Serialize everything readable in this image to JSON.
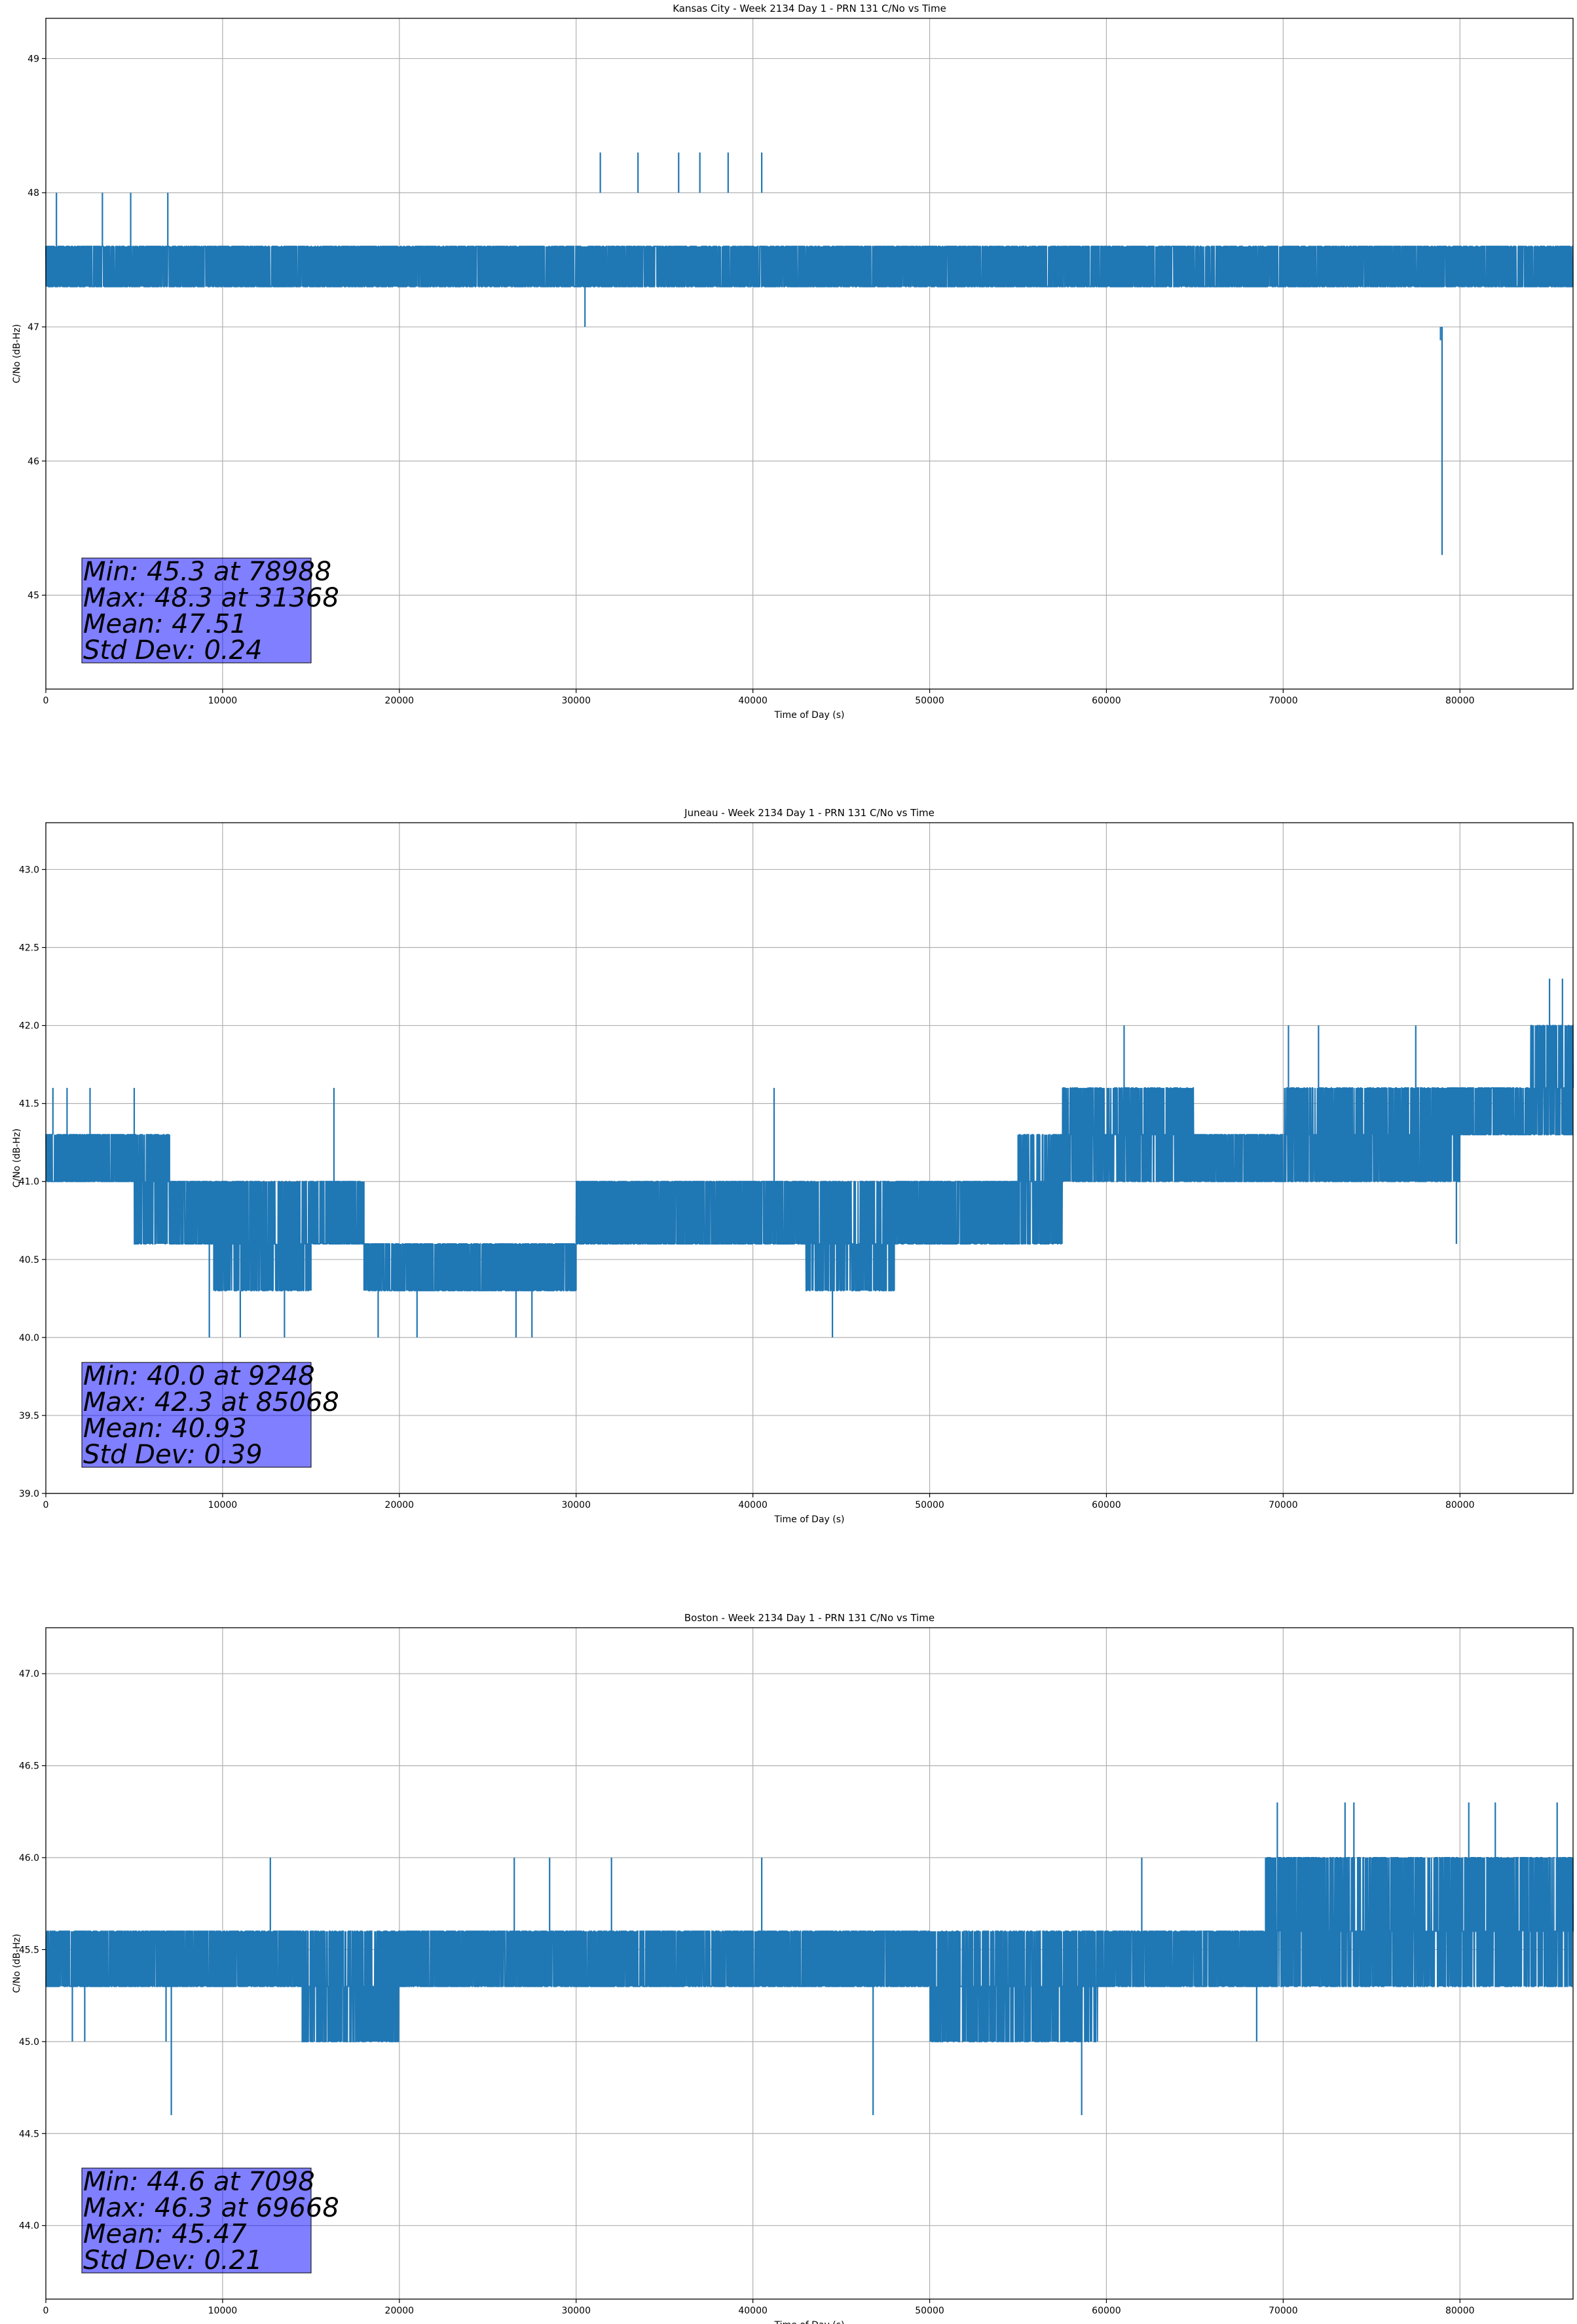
{
  "chart_data": [
    {
      "type": "line",
      "title": "Kansas City - Week 2134 Day 1 - PRN 131 C/No vs Time",
      "xlabel": "Time of Day (s)",
      "ylabel": "C/No (dB-Hz)",
      "xlim": [
        0,
        86400
      ],
      "ylim": [
        44.3,
        49.3
      ],
      "xticks": [
        0,
        10000,
        20000,
        30000,
        40000,
        50000,
        60000,
        70000,
        80000
      ],
      "yticks": [
        45,
        46,
        47,
        48,
        49
      ],
      "ytick_labels": [
        "45",
        "46",
        "47",
        "48",
        "49"
      ],
      "grid": true,
      "color": "#1f77b4",
      "band_levels": [
        47.3,
        47.6
      ],
      "segments": [
        {
          "x": [
            0,
            3000
          ],
          "low": 47.3,
          "high": 47.6
        },
        {
          "x": [
            3000,
            7000
          ],
          "low": 47.3,
          "high": 47.6
        },
        {
          "x": [
            7000,
            10000
          ],
          "low": 47.3,
          "high": 47.6
        },
        {
          "x": [
            10000,
            22500
          ],
          "low": 47.0,
          "high": 47.6
        },
        {
          "x": [
            22500,
            27000
          ],
          "low": 47.3,
          "high": 47.6
        },
        {
          "x": [
            27000,
            44000
          ],
          "low": 47.3,
          "high": 48.0
        },
        {
          "x": [
            44000,
            50500
          ],
          "low": 47.3,
          "high": 47.6
        },
        {
          "x": [
            50500,
            54000
          ],
          "low": 47.0,
          "high": 47.6
        },
        {
          "x": [
            54000,
            58000
          ],
          "low": 47.3,
          "high": 47.6
        },
        {
          "x": [
            58000,
            72000
          ],
          "low": 47.3,
          "high": 48.0
        },
        {
          "x": [
            72000,
            75000
          ],
          "low": 47.3,
          "high": 47.6
        },
        {
          "x": [
            75000,
            80000
          ],
          "low": 47.0,
          "high": 47.6
        },
        {
          "x": [
            80000,
            86400
          ],
          "low": 47.3,
          "high": 47.6
        }
      ],
      "spikes": [
        {
          "x": 600,
          "y": 48.0
        },
        {
          "x": 3200,
          "y": 48.0
        },
        {
          "x": 4800,
          "y": 48.0
        },
        {
          "x": 6900,
          "y": 48.0
        },
        {
          "x": 31368,
          "y": 48.3
        },
        {
          "x": 33500,
          "y": 48.3
        },
        {
          "x": 35800,
          "y": 48.3
        },
        {
          "x": 37000,
          "y": 48.3
        },
        {
          "x": 38600,
          "y": 48.3
        },
        {
          "x": 40500,
          "y": 48.3
        },
        {
          "x": 78988,
          "y": 45.3
        },
        {
          "x": 78900,
          "y": 46.9
        },
        {
          "x": 30500,
          "y": 47.0
        }
      ],
      "annotation": [
        "Min: 45.3 at 78988",
        "Max: 48.3 at 31368",
        "Mean: 47.51",
        "Std Dev: 0.24"
      ],
      "stats": {
        "min": 45.3,
        "min_time": 78988,
        "max": 48.3,
        "max_time": 31368,
        "mean": 47.51,
        "std_dev": 0.24
      }
    },
    {
      "type": "line",
      "title": "Juneau - Week 2134 Day 1 - PRN 131 C/No vs Time",
      "xlabel": "Time of Day (s)",
      "ylabel": "C/No (dB-Hz)",
      "xlim": [
        0,
        86400
      ],
      "ylim": [
        39.0,
        43.3
      ],
      "xticks": [
        0,
        10000,
        20000,
        30000,
        40000,
        50000,
        60000,
        70000,
        80000
      ],
      "yticks": [
        39.0,
        39.5,
        40.0,
        40.5,
        41.0,
        41.5,
        42.0,
        42.5,
        43.0
      ],
      "ytick_labels": [
        "39.0",
        "39.5",
        "40.0",
        "40.5",
        "41.0",
        "41.5",
        "42.0",
        "42.5",
        "43.0"
      ],
      "grid": true,
      "color": "#1f77b4",
      "band_levels": [
        40.0,
        40.3,
        40.6,
        41.0,
        41.3,
        41.6,
        42.0
      ],
      "segments": [
        {
          "x": [
            0,
            5000
          ],
          "low": 41.0,
          "high": 41.3
        },
        {
          "x": [
            5000,
            7000
          ],
          "low": 40.6,
          "high": 41.3
        },
        {
          "x": [
            7000,
            9500
          ],
          "low": 40.6,
          "high": 41.0
        },
        {
          "x": [
            9500,
            15000
          ],
          "low": 40.3,
          "high": 41.0
        },
        {
          "x": [
            15000,
            18000
          ],
          "low": 40.6,
          "high": 41.0
        },
        {
          "x": [
            18000,
            26000
          ],
          "low": 40.3,
          "high": 40.6
        },
        {
          "x": [
            26000,
            30000
          ],
          "low": 40.3,
          "high": 40.6
        },
        {
          "x": [
            30000,
            36000
          ],
          "low": 40.6,
          "high": 41.0
        },
        {
          "x": [
            36000,
            43000
          ],
          "low": 40.6,
          "high": 41.0
        },
        {
          "x": [
            43000,
            48000
          ],
          "low": 40.3,
          "high": 41.0
        },
        {
          "x": [
            48000,
            55000
          ],
          "low": 40.6,
          "high": 41.0
        },
        {
          "x": [
            55000,
            57500
          ],
          "low": 40.6,
          "high": 41.3
        },
        {
          "x": [
            57500,
            65000
          ],
          "low": 41.0,
          "high": 41.6
        },
        {
          "x": [
            65000,
            70000
          ],
          "low": 41.0,
          "high": 41.3
        },
        {
          "x": [
            70000,
            80000
          ],
          "low": 41.0,
          "high": 41.6
        },
        {
          "x": [
            80000,
            84000
          ],
          "low": 41.3,
          "high": 41.6
        },
        {
          "x": [
            84000,
            86400
          ],
          "low": 41.3,
          "high": 42.0
        }
      ],
      "spikes": [
        {
          "x": 400,
          "y": 41.6
        },
        {
          "x": 1200,
          "y": 41.6
        },
        {
          "x": 2500,
          "y": 41.6
        },
        {
          "x": 5000,
          "y": 41.6
        },
        {
          "x": 16300,
          "y": 41.6
        },
        {
          "x": 41200,
          "y": 41.6
        },
        {
          "x": 9248,
          "y": 40.0
        },
        {
          "x": 11000,
          "y": 40.0
        },
        {
          "x": 13500,
          "y": 40.0
        },
        {
          "x": 18800,
          "y": 40.0
        },
        {
          "x": 21000,
          "y": 40.0
        },
        {
          "x": 26600,
          "y": 40.0
        },
        {
          "x": 27500,
          "y": 40.0
        },
        {
          "x": 44500,
          "y": 40.0
        },
        {
          "x": 61000,
          "y": 42.0
        },
        {
          "x": 70300,
          "y": 42.0
        },
        {
          "x": 72000,
          "y": 42.0
        },
        {
          "x": 77500,
          "y": 42.0
        },
        {
          "x": 85068,
          "y": 42.3
        },
        {
          "x": 85800,
          "y": 42.3
        },
        {
          "x": 79800,
          "y": 40.6
        }
      ],
      "annotation": [
        "Min: 40.0 at 9248",
        "Max: 42.3 at 85068",
        "Mean: 40.93",
        "Std Dev: 0.39"
      ],
      "stats": {
        "min": 40.0,
        "min_time": 9248,
        "max": 42.3,
        "max_time": 85068,
        "mean": 40.93,
        "std_dev": 0.39
      }
    },
    {
      "type": "line",
      "title": "Boston - Week 2134 Day 1 - PRN 131 C/No vs Time",
      "xlabel": "Time of Day (s)",
      "ylabel": "C/No (dB-Hz)",
      "xlim": [
        0,
        86400
      ],
      "ylim": [
        43.6,
        47.25
      ],
      "xticks": [
        0,
        10000,
        20000,
        30000,
        40000,
        50000,
        60000,
        70000,
        80000
      ],
      "yticks": [
        44.0,
        44.5,
        45.0,
        45.5,
        46.0,
        46.5,
        47.0
      ],
      "ytick_labels": [
        "44.0",
        "44.5",
        "45.0",
        "45.5",
        "46.0",
        "46.5",
        "47.0"
      ],
      "grid": true,
      "color": "#1f77b4",
      "band_levels": [
        45.0,
        45.3,
        45.6,
        46.0
      ],
      "segments": [
        {
          "x": [
            0,
            14500
          ],
          "low": 45.3,
          "high": 45.6
        },
        {
          "x": [
            14500,
            20000
          ],
          "low": 45.0,
          "high": 45.6
        },
        {
          "x": [
            20000,
            27000
          ],
          "low": 45.3,
          "high": 45.6
        },
        {
          "x": [
            27000,
            50000
          ],
          "low": 45.3,
          "high": 45.6
        },
        {
          "x": [
            50000,
            59500
          ],
          "low": 45.0,
          "high": 45.6
        },
        {
          "x": [
            59500,
            69000
          ],
          "low": 45.3,
          "high": 45.6
        },
        {
          "x": [
            69000,
            76000
          ],
          "low": 45.3,
          "high": 46.0
        },
        {
          "x": [
            76000,
            86400
          ],
          "low": 45.3,
          "high": 46.0
        }
      ],
      "spikes": [
        {
          "x": 7098,
          "y": 44.6
        },
        {
          "x": 46800,
          "y": 44.6
        },
        {
          "x": 58600,
          "y": 44.6
        },
        {
          "x": 12700,
          "y": 46.0
        },
        {
          "x": 26500,
          "y": 46.0
        },
        {
          "x": 28500,
          "y": 46.0
        },
        {
          "x": 32000,
          "y": 46.0
        },
        {
          "x": 40500,
          "y": 46.0
        },
        {
          "x": 62000,
          "y": 46.0
        },
        {
          "x": 69668,
          "y": 46.3
        },
        {
          "x": 73500,
          "y": 46.3
        },
        {
          "x": 74000,
          "y": 46.3
        },
        {
          "x": 80500,
          "y": 46.3
        },
        {
          "x": 82000,
          "y": 46.3
        },
        {
          "x": 85500,
          "y": 46.3
        },
        {
          "x": 1500,
          "y": 45.0
        },
        {
          "x": 2200,
          "y": 45.0
        },
        {
          "x": 6800,
          "y": 45.0
        },
        {
          "x": 68500,
          "y": 45.0
        }
      ],
      "annotation": [
        "Min: 44.6 at 7098",
        "Max: 46.3 at 69668",
        "Mean: 45.47",
        "Std Dev: 0.21"
      ],
      "stats": {
        "min": 44.6,
        "min_time": 7098,
        "max": 46.3,
        "max_time": 69668,
        "mean": 45.47,
        "std_dev": 0.21
      }
    }
  ]
}
